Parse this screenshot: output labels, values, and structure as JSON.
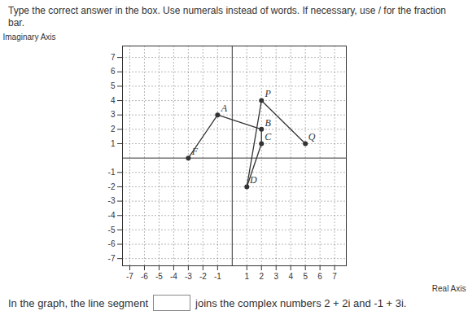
{
  "chart_data": {
    "type": "scatter",
    "title": "Type the correct answer in the box. Use numerals instead of words. If necessary, use / for the fraction bar.",
    "x_label": "Real Axis",
    "y_label": "Imaginary Axis",
    "labels": [
      "A",
      "B",
      "C",
      "D",
      "F",
      "P",
      "Q"
    ],
    "x": [
      -1,
      2,
      2,
      1,
      -3,
      2,
      5
    ],
    "values": [
      3,
      2,
      1,
      -2,
      0,
      4,
      1
    ],
    "segments": [
      [
        [
          -3,
          0
        ],
        [
          -1,
          3
        ]
      ],
      [
        [
          -1,
          3
        ],
        [
          2,
          2
        ]
      ],
      [
        [
          2,
          2
        ],
        [
          2,
          1
        ]
      ],
      [
        [
          2,
          1
        ],
        [
          1,
          -2
        ]
      ],
      [
        [
          1,
          -2
        ],
        [
          2,
          4
        ]
      ],
      [
        [
          2,
          4
        ],
        [
          5,
          1
        ]
      ]
    ],
    "xlim": [
      -7.5,
      7.8
    ],
    "ylim": [
      -7.5,
      7.8
    ],
    "xticks": [
      -7,
      -6,
      -5,
      -4,
      -3,
      -2,
      -1,
      1,
      2,
      3,
      4,
      5,
      6,
      7
    ],
    "yticks": [
      -7,
      -6,
      -5,
      -4,
      -3,
      -2,
      -1,
      1,
      2,
      3,
      4,
      5,
      6,
      7
    ],
    "grid": true,
    "annotations": [
      "In the graph, the line segment",
      "joins the complex numbers 2 + 2i and -1 + 3i."
    ]
  }
}
